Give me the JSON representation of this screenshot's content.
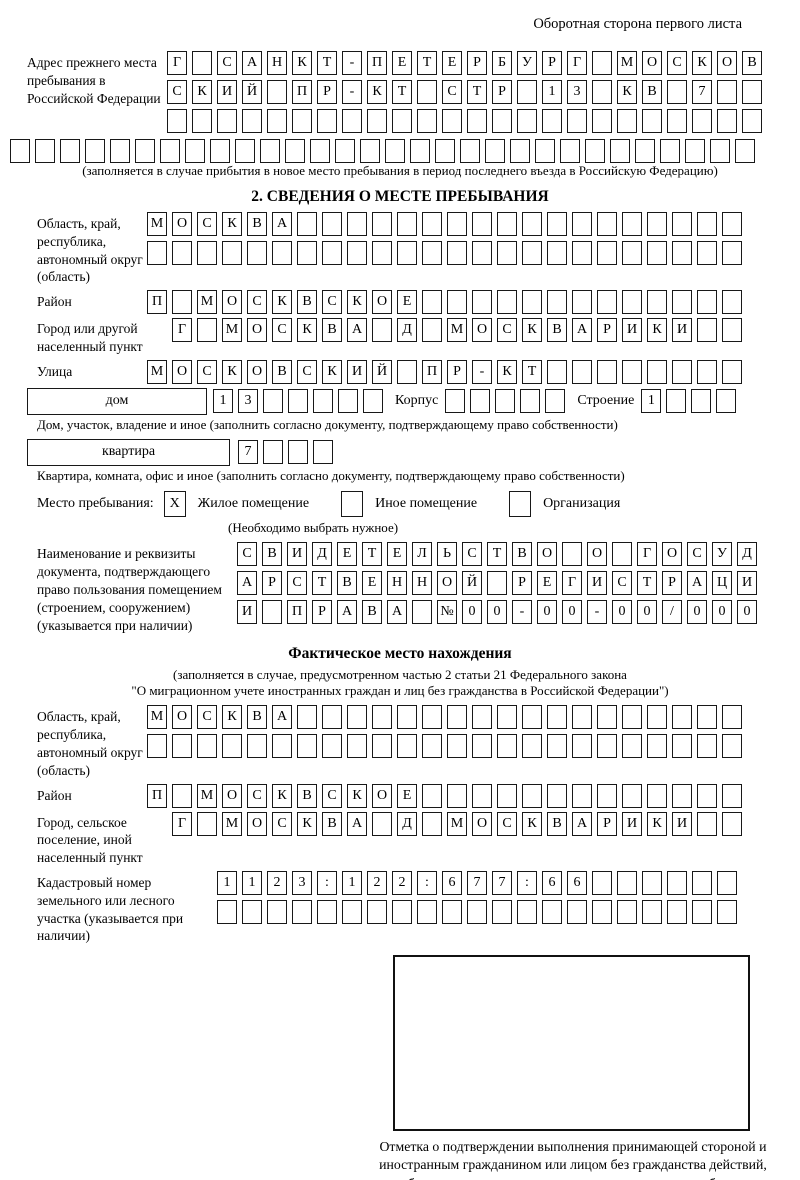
{
  "page": {
    "corner_note": "Оборотная сторона первого листа"
  },
  "previous_address": {
    "label": "Адрес прежнего места пребывания в Российской Федерации",
    "line1": "Г САНКТ-ПЕТЕРБУРГ МОСКОВ",
    "line2": "СКИЙ ПР-КТ СТР 13 КВ 7  ",
    "line3": "                        ",
    "line4": "                              ",
    "note": "(заполняется в случае прибытия в новое место пребывания в период последнего въезда в Российскую Федерацию)"
  },
  "section2": {
    "title": "2. СВЕДЕНИЯ О МЕСТЕ ПРЕБЫВАНИЯ",
    "region": {
      "label": "Область, край, республика, автономный округ (область)",
      "line1": "МОСКВА                  ",
      "line2": "                        "
    },
    "district": {
      "label": "Район",
      "line1": "П МОСКВСКОЕ             "
    },
    "city": {
      "label": "Город или другой населенный пункт",
      "line1": "Г МОСКВА Д МОСКВАРИКИ  "
    },
    "street": {
      "label": "Улица",
      "line1": "МОСКОВСКИЙ ПР-КТ        "
    },
    "house": {
      "label": "дом",
      "value": "13     ",
      "korpus_label": "Корпус",
      "korpus_value": "     ",
      "stroenie_label": "Строение",
      "stroenie_value": "1   ",
      "note": "Дом, участок, владение и иное (заполнить согласно документу, подтверждающему право собственности)"
    },
    "apartment": {
      "label": "квартира",
      "value": "7   ",
      "note": "Квартира, комната, офис и иное (заполнить согласно документу, подтверждающему право собственности)"
    },
    "stay_type": {
      "label": "Место пребывания:",
      "options": [
        {
          "label": "Жилое помещение",
          "checked": "X"
        },
        {
          "label": "Иное помещение",
          "checked": " "
        },
        {
          "label": "Организация",
          "checked": " "
        }
      ],
      "note": "(Необходимо выбрать нужное)"
    },
    "document": {
      "label": "Наименование и реквизиты документа, подтверждающего право пользования помещением (строением, сооружением) (указывается при наличии)",
      "line1": "СВИДЕТЕЛЬСТВО О ГОСУД",
      "line2": "АРСТВЕННОЙ РЕГИСТРАЦИ",
      "line3": "И ПРАВА №00-00-00/000"
    }
  },
  "actual_location": {
    "title": "Фактическое место нахождения",
    "note1": "(заполняется в случае, предусмотренном частью 2 статьи 21 Федерального закона",
    "note2": "\"О миграционном учете иностранных граждан и лиц без гражданства в Российской Федерации\")",
    "region": {
      "label": "Область, край, республика, автономный округ (область)",
      "line1": "МОСКВА                  ",
      "line2": "                        "
    },
    "district": {
      "label": "Район",
      "line1": "П МОСКВСКОЕ             "
    },
    "city": {
      "label": "Город, сельское поселение, иной населенный пункт",
      "line1": "Г МОСКВА Д МОСКВАРИКИ  "
    },
    "cadastral": {
      "label": "Кадастровый номер земельного или лесного участка (указывается при наличии)",
      "line1": "1123:122:677:66      ",
      "line2": "                     "
    }
  },
  "stamp": {
    "caption": "Отметка о подтверждении выполнения принимающей стороной и иностранным гражданином или лицом без гражданства действий, необходимых для его постановки на учет по месту пребывания"
  }
}
